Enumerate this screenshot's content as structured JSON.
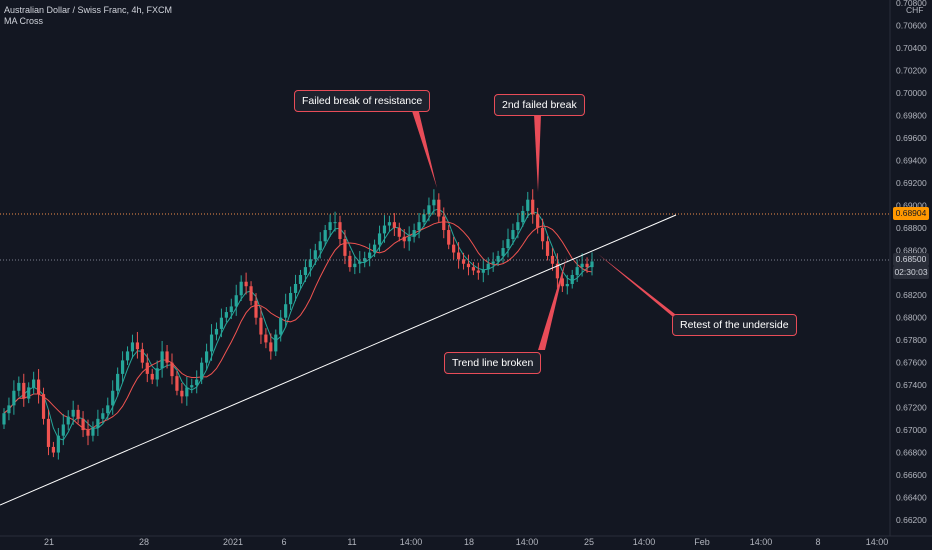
{
  "header": {
    "symbol_line": "Australian Dollar / Swiss Franc, 4h, FXCM",
    "indicator": "MA Cross"
  },
  "axis": {
    "currency": "CHF"
  },
  "tags": {
    "resistance_price": "0.68904",
    "current_price": "0.68500",
    "countdown": "02:30:03"
  },
  "colors": {
    "background": "#131722",
    "up_candle": "#26a69a",
    "down_candle": "#ef5350",
    "ma_fast": "#26a69a",
    "ma_slow": "#ef5350",
    "trendline": "#ffffff",
    "resistance_tag": "#ff9800",
    "callout_border": "#e84c58"
  },
  "annotations": [
    {
      "id": "failed-break",
      "text": "Failed break of resistance"
    },
    {
      "id": "second-failed",
      "text": "2nd failed break"
    },
    {
      "id": "trend-broken",
      "text": "Trend line broken"
    },
    {
      "id": "retest",
      "text": "Retest of the underside"
    }
  ],
  "chart_data": {
    "type": "candlestick",
    "title": "Australian Dollar / Swiss Franc, 4h, FXCM",
    "y_axis_label": "CHF",
    "y_ticks": [
      "0.70800",
      "0.70600",
      "0.70400",
      "0.70200",
      "0.70000",
      "0.69800",
      "0.69600",
      "0.69400",
      "0.69200",
      "0.69000",
      "0.68800",
      "0.68600",
      "0.68400",
      "0.68200",
      "0.68000",
      "0.67800",
      "0.67600",
      "0.67400",
      "0.67200",
      "0.67000",
      "0.66800",
      "0.66600",
      "0.66400",
      "0.66200"
    ],
    "x_ticks": [
      "21",
      "28",
      "2021",
      "6",
      "11",
      "14:00",
      "18",
      "14:00",
      "25",
      "14:00",
      "Feb",
      "14:00",
      "8",
      "14:00"
    ],
    "ylim": [
      0.6618,
      0.7082
    ],
    "closes": [
      0.6715,
      0.6722,
      0.6735,
      0.6742,
      0.6728,
      0.6738,
      0.6745,
      0.6732,
      0.671,
      0.6685,
      0.668,
      0.6695,
      0.6705,
      0.6712,
      0.6718,
      0.671,
      0.67,
      0.6695,
      0.6702,
      0.671,
      0.6715,
      0.6722,
      0.6735,
      0.675,
      0.6762,
      0.677,
      0.6778,
      0.6772,
      0.676,
      0.675,
      0.6745,
      0.6755,
      0.677,
      0.676,
      0.6748,
      0.6735,
      0.673,
      0.6738,
      0.674,
      0.6745,
      0.676,
      0.677,
      0.6785,
      0.679,
      0.68,
      0.6805,
      0.681,
      0.682,
      0.6832,
      0.6828,
      0.6815,
      0.68,
      0.6785,
      0.6778,
      0.677,
      0.6785,
      0.68,
      0.6812,
      0.6822,
      0.683,
      0.6838,
      0.6845,
      0.6852,
      0.686,
      0.6868,
      0.6878,
      0.6885,
      0.6885,
      0.687,
      0.6855,
      0.6845,
      0.6848,
      0.685,
      0.6853,
      0.6858,
      0.6865,
      0.6875,
      0.6882,
      0.6885,
      0.688,
      0.6872,
      0.6868,
      0.6872,
      0.6878,
      0.6885,
      0.6892,
      0.69,
      0.6905,
      0.689,
      0.6878,
      0.6865,
      0.6858,
      0.6852,
      0.6848,
      0.6845,
      0.6842,
      0.684,
      0.6843,
      0.6848,
      0.685,
      0.6855,
      0.6862,
      0.687,
      0.6878,
      0.6885,
      0.6895,
      0.6905,
      0.6892,
      0.688,
      0.6868,
      0.6855,
      0.6848,
      0.6835,
      0.6828,
      0.683,
      0.6838,
      0.6845,
      0.6848,
      0.6845,
      0.685
    ],
    "ma_fast_note": "green moving average",
    "ma_slow_note": "red moving average",
    "resistance_level": 0.68904,
    "current_level": 0.685
  }
}
